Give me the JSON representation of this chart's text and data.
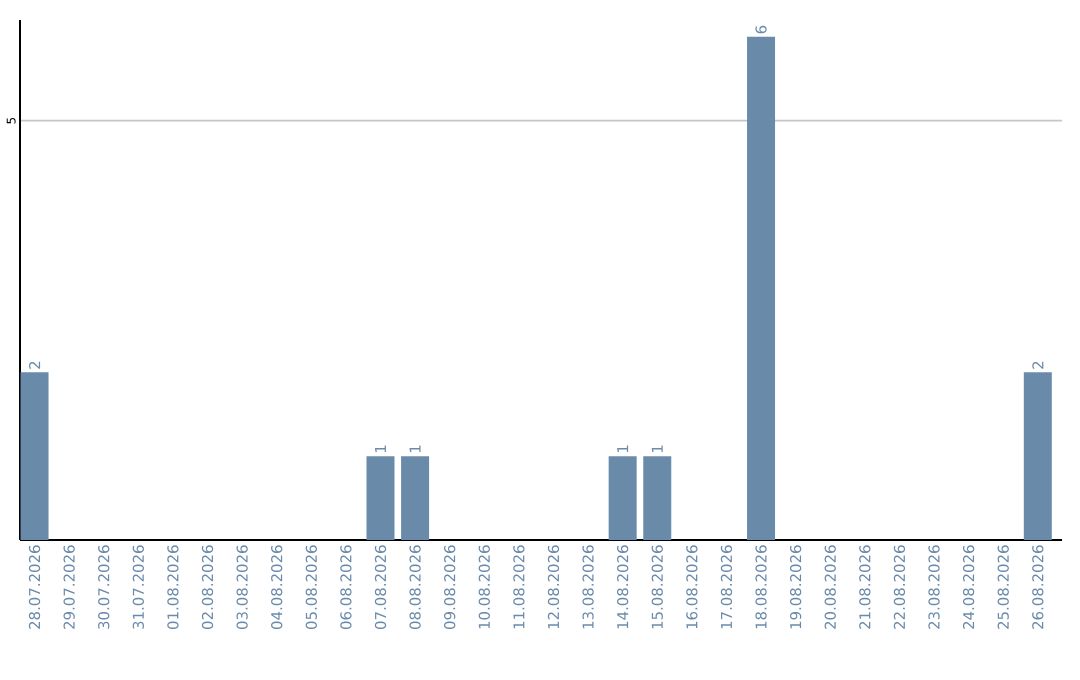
{
  "chart_data": {
    "type": "bar",
    "categories": [
      "28.07.2026",
      "29.07.2026",
      "30.07.2026",
      "31.07.2026",
      "01.08.2026",
      "02.08.2026",
      "03.08.2026",
      "04.08.2026",
      "05.08.2026",
      "06.08.2026",
      "07.08.2026",
      "08.08.2026",
      "09.08.2026",
      "10.08.2026",
      "11.08.2026",
      "12.08.2026",
      "13.08.2026",
      "14.08.2026",
      "15.08.2026",
      "16.08.2026",
      "17.08.2026",
      "18.08.2026",
      "19.08.2026",
      "20.08.2026",
      "21.08.2026",
      "22.08.2026",
      "23.08.2026",
      "24.08.2026",
      "25.08.2026",
      "26.08.2026"
    ],
    "values": [
      2,
      0,
      0,
      0,
      0,
      0,
      0,
      0,
      0,
      0,
      1,
      1,
      0,
      0,
      0,
      0,
      0,
      1,
      1,
      0,
      0,
      6,
      0,
      0,
      0,
      0,
      0,
      0,
      0,
      2
    ],
    "value_labels": [
      "2",
      null,
      null,
      null,
      null,
      null,
      null,
      null,
      null,
      null,
      "1",
      "1",
      null,
      null,
      null,
      null,
      null,
      "1",
      "1",
      null,
      null,
      "6",
      null,
      null,
      null,
      null,
      null,
      null,
      null,
      "2"
    ],
    "color": "#6a8aaa",
    "ylim": [
      0,
      6.2
    ],
    "yticks": [
      5
    ],
    "grid": "y"
  }
}
